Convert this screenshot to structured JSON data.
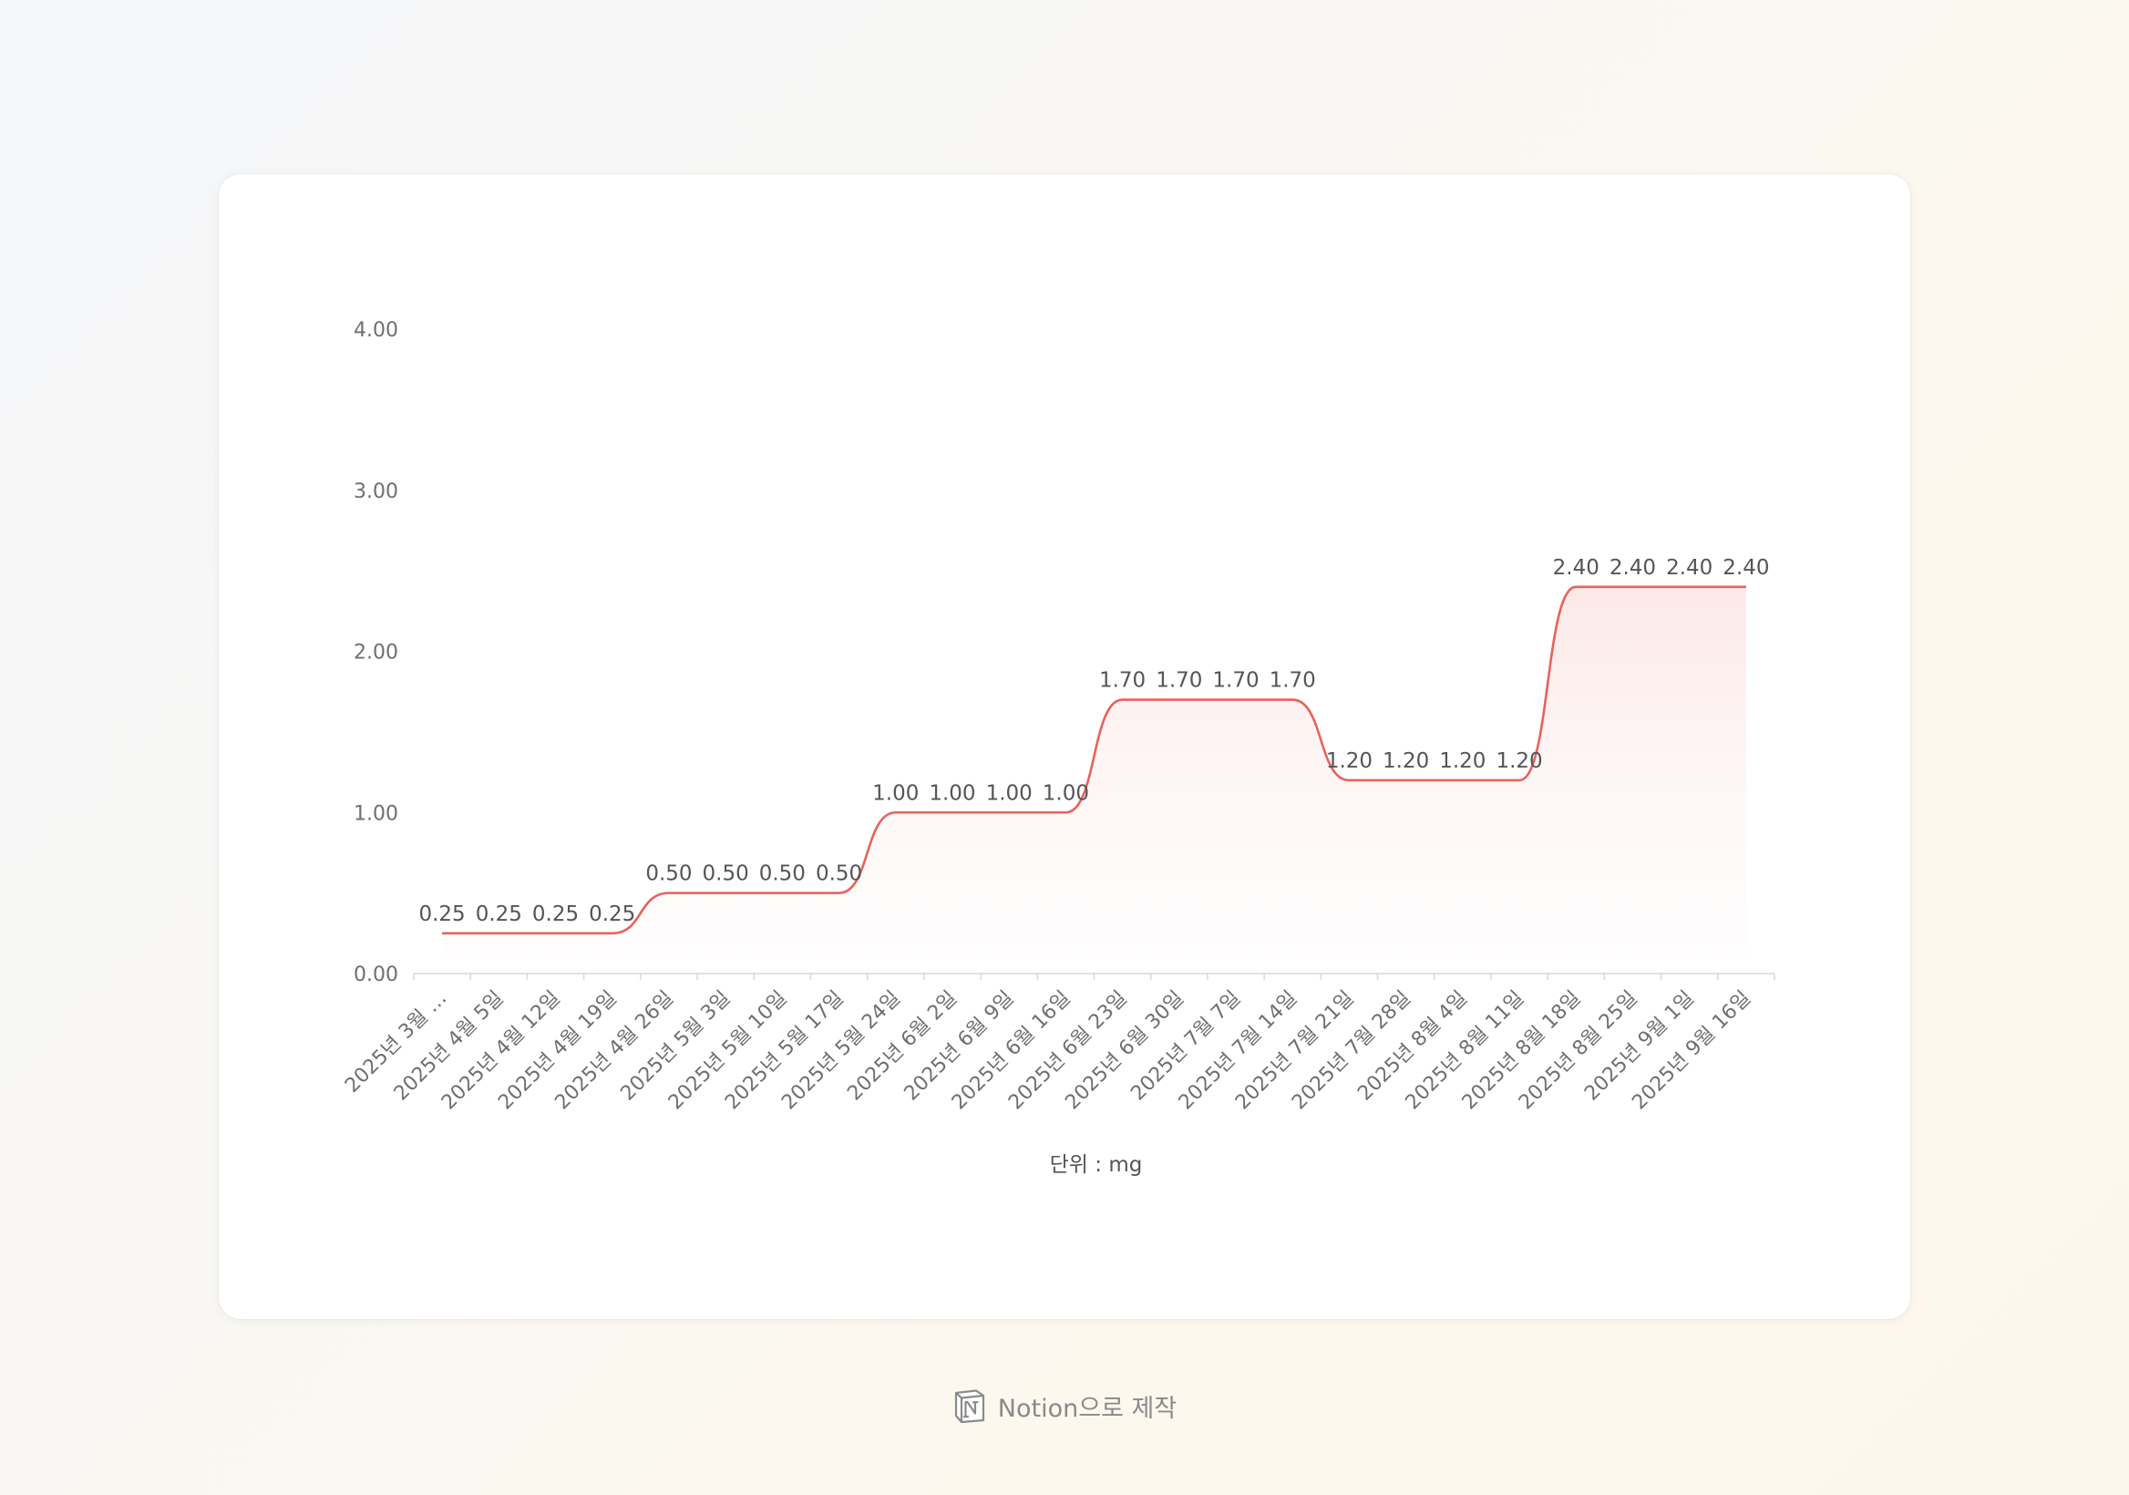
{
  "chart_data": {
    "type": "area",
    "categories": [
      "2025년 3월 …",
      "2025년 4월 5일",
      "2025년 4월 12일",
      "2025년 4월 19일",
      "2025년 4월 26일",
      "2025년 5월 3일",
      "2025년 5월 10일",
      "2025년 5월 17일",
      "2025년 5월 24일",
      "2025년 6월 2일",
      "2025년 6월 9일",
      "2025년 6월 16일",
      "2025년 6월 23일",
      "2025년 6월 30일",
      "2025년 7월 7일",
      "2025년 7월 14일",
      "2025년 7월 21일",
      "2025년 7월 28일",
      "2025년 8월 4일",
      "2025년 8월 11일",
      "2025년 8월 18일",
      "2025년 8월 25일",
      "2025년 9월 1일",
      "2025년 9월 16일"
    ],
    "values": [
      0.25,
      0.25,
      0.25,
      0.25,
      0.5,
      0.5,
      0.5,
      0.5,
      1.0,
      1.0,
      1.0,
      1.0,
      1.7,
      1.7,
      1.7,
      1.7,
      1.2,
      1.2,
      1.2,
      1.2,
      2.4,
      2.4,
      2.4,
      2.4
    ],
    "data_labels": [
      "0.25",
      "0.25",
      "0.25",
      "0.25",
      "0.50",
      "0.50",
      "0.50",
      "0.50",
      "1.00",
      "1.00",
      "1.00",
      "1.00",
      "1.70",
      "1.70",
      "1.70",
      "1.70",
      "1.20",
      "1.20",
      "1.20",
      "1.20",
      "2.40",
      "2.40",
      "2.40",
      "2.40"
    ],
    "y_ticks": [
      "0.00",
      "1.00",
      "2.00",
      "3.00",
      "4.00"
    ],
    "ylim": [
      0,
      4
    ],
    "xlabel": "단위 : mg",
    "ylabel": "",
    "title": "",
    "line_color": "#e8625a",
    "fill_color": "#fbe7e6",
    "grid": false,
    "legend": "none"
  },
  "footer": {
    "text": "Notion으로 제작",
    "icon": "notion-logo-icon"
  }
}
